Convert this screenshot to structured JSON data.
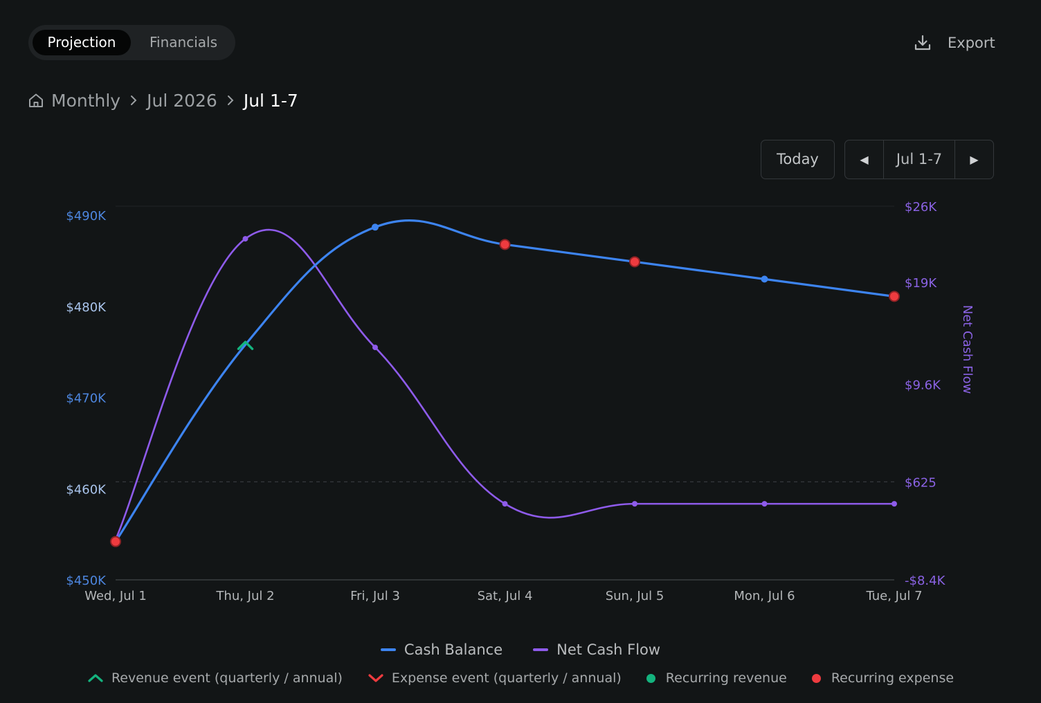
{
  "tabs": [
    {
      "label": "Projection",
      "active": true
    },
    {
      "label": "Financials",
      "active": false
    }
  ],
  "export_label": "Export",
  "breadcrumb": [
    "Monthly",
    "Jul 2026",
    "Jul 1-7"
  ],
  "controls": {
    "today_label": "Today",
    "range_label": "Jul 1-7"
  },
  "colors": {
    "cash_balance": "#3d84f0",
    "net_cash_flow": "#8e5bea",
    "revenue": "#14b37e",
    "expense": "#ee3b3f"
  },
  "legend": {
    "series": [
      "Cash Balance",
      "Net Cash Flow"
    ],
    "markers": [
      "Revenue event (quarterly / annual)",
      "Expense event (quarterly / annual)",
      "Recurring revenue",
      "Recurring expense"
    ]
  },
  "chart_data": {
    "type": "line",
    "categories": [
      "Wed, Jul 1",
      "Thu, Jul 2",
      "Fri, Jul 3",
      "Sat, Jul 4",
      "Sun, Jul 5",
      "Mon, Jul 6",
      "Tue, Jul 7"
    ],
    "series": [
      {
        "name": "Cash Balance",
        "axis": "left",
        "values": [
          454200,
          475800,
          488700,
          486800,
          484900,
          483000,
          481100
        ],
        "markers": [
          "recurring-expense",
          "revenue-event",
          "recurring-revenue",
          "recurring-expense",
          "recurring-expense",
          "recurring-revenue",
          "recurring-expense"
        ]
      },
      {
        "name": "Net Cash Flow",
        "axis": "right",
        "values": [
          -4700,
          23000,
          13000,
          -1400,
          -1400,
          -1400,
          -1400
        ]
      }
    ],
    "left_axis": {
      "ticks": [
        "$450K",
        "$460K",
        "$470K",
        "$480K",
        "$490K"
      ],
      "tick_values": [
        450000,
        460000,
        470000,
        480000,
        490000
      ],
      "range": [
        450000,
        491000
      ]
    },
    "right_axis": {
      "label": "Net Cash Flow",
      "ticks": [
        "-$8.4K",
        "$625",
        "$9.6K",
        "$19K",
        "$26K"
      ],
      "tick_values": [
        -8400,
        625,
        9600,
        19000,
        26000
      ],
      "range": [
        -8400,
        26000
      ]
    },
    "zero_line_right": 625,
    "grid": false,
    "legend_position": "bottom"
  }
}
